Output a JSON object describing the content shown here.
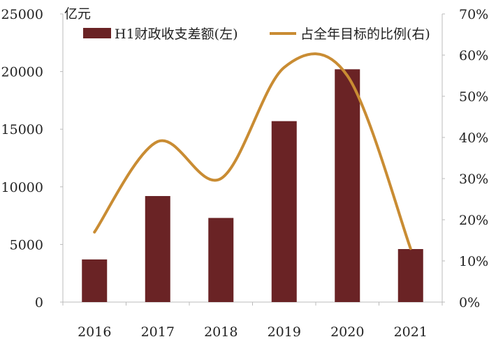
{
  "chart_data": {
    "type": "bar+line",
    "title": "",
    "unit_left": "亿元",
    "categories": [
      "2016",
      "2017",
      "2018",
      "2019",
      "2020",
      "2021"
    ],
    "series": [
      {
        "name": "H1财政收支差额(左)",
        "type": "bar",
        "axis": "left",
        "values": [
          3700,
          9200,
          7300,
          15700,
          20200,
          4600
        ]
      },
      {
        "name": "占全年目标的比例(右)",
        "type": "line",
        "axis": "right",
        "smooth": true,
        "values": [
          0.17,
          0.39,
          0.3,
          0.57,
          0.55,
          0.13
        ]
      }
    ],
    "left_axis": {
      "min": 0,
      "max": 25000,
      "ticks": [
        0,
        5000,
        10000,
        15000,
        20000,
        25000
      ],
      "tick_labels": [
        "0",
        "5000",
        "10000",
        "15000",
        "20000",
        "25000"
      ]
    },
    "right_axis": {
      "min": 0,
      "max": 0.7,
      "ticks": [
        0,
        0.1,
        0.2,
        0.3,
        0.4,
        0.5,
        0.6,
        0.7
      ],
      "tick_labels": [
        "0%",
        "10%",
        "20%",
        "30%",
        "40%",
        "50%",
        "60%",
        "70%"
      ]
    },
    "legend_position": "top",
    "colors": {
      "bar": "#6a2325",
      "line": "#c98c33"
    }
  }
}
